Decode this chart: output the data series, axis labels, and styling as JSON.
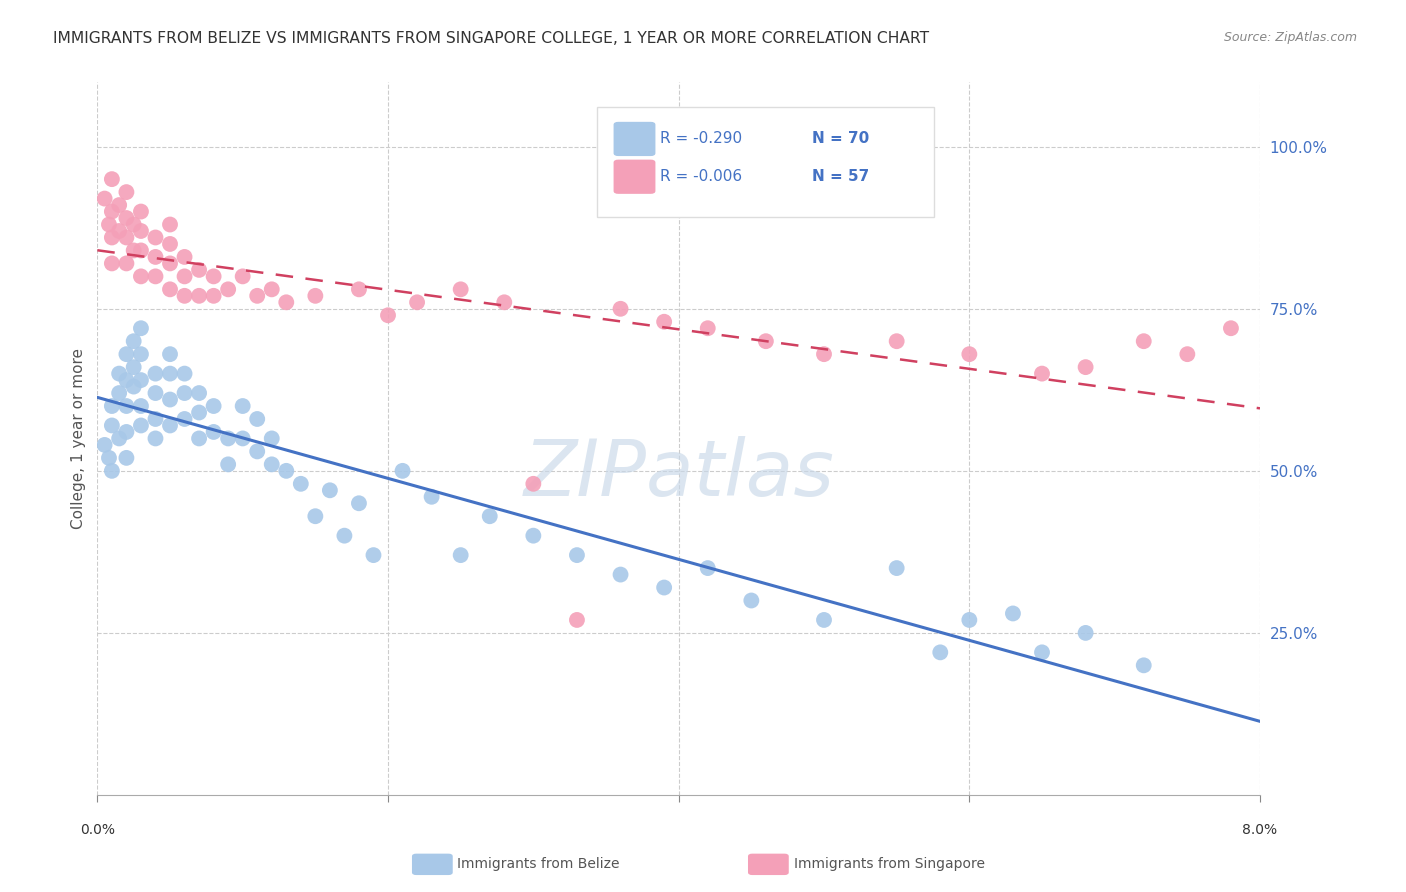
{
  "title": "IMMIGRANTS FROM BELIZE VS IMMIGRANTS FROM SINGAPORE COLLEGE, 1 YEAR OR MORE CORRELATION CHART",
  "source": "Source: ZipAtlas.com",
  "ylabel": "College, 1 year or more",
  "ytick_labels": [
    "25.0%",
    "50.0%",
    "75.0%",
    "100.0%"
  ],
  "ytick_values": [
    0.25,
    0.5,
    0.75,
    1.0
  ],
  "xlim": [
    0.0,
    0.08
  ],
  "ylim": [
    0.0,
    1.1
  ],
  "legend_r_belize": "-0.290",
  "legend_n_belize": "70",
  "legend_r_singapore": "-0.006",
  "legend_n_singapore": "57",
  "color_belize": "#a8c8e8",
  "color_singapore": "#f4a0b8",
  "color_belize_line": "#4472c4",
  "color_singapore_line": "#d04060",
  "belize_x": [
    0.0005,
    0.0008,
    0.001,
    0.001,
    0.001,
    0.0015,
    0.0015,
    0.0015,
    0.002,
    0.002,
    0.002,
    0.002,
    0.002,
    0.0025,
    0.0025,
    0.0025,
    0.003,
    0.003,
    0.003,
    0.003,
    0.003,
    0.004,
    0.004,
    0.004,
    0.004,
    0.005,
    0.005,
    0.005,
    0.005,
    0.006,
    0.006,
    0.006,
    0.007,
    0.007,
    0.007,
    0.008,
    0.008,
    0.009,
    0.009,
    0.01,
    0.01,
    0.011,
    0.011,
    0.012,
    0.012,
    0.013,
    0.014,
    0.015,
    0.016,
    0.017,
    0.018,
    0.019,
    0.021,
    0.023,
    0.025,
    0.027,
    0.03,
    0.033,
    0.036,
    0.039,
    0.042,
    0.045,
    0.05,
    0.055,
    0.058,
    0.06,
    0.063,
    0.065,
    0.068,
    0.072
  ],
  "belize_y": [
    0.54,
    0.52,
    0.6,
    0.57,
    0.5,
    0.65,
    0.62,
    0.55,
    0.68,
    0.64,
    0.6,
    0.56,
    0.52,
    0.7,
    0.66,
    0.63,
    0.72,
    0.68,
    0.64,
    0.6,
    0.57,
    0.65,
    0.62,
    0.58,
    0.55,
    0.68,
    0.65,
    0.61,
    0.57,
    0.65,
    0.62,
    0.58,
    0.62,
    0.59,
    0.55,
    0.6,
    0.56,
    0.55,
    0.51,
    0.6,
    0.55,
    0.58,
    0.53,
    0.55,
    0.51,
    0.5,
    0.48,
    0.43,
    0.47,
    0.4,
    0.45,
    0.37,
    0.5,
    0.46,
    0.37,
    0.43,
    0.4,
    0.37,
    0.34,
    0.32,
    0.35,
    0.3,
    0.27,
    0.35,
    0.22,
    0.27,
    0.28,
    0.22,
    0.25,
    0.2
  ],
  "singapore_x": [
    0.0005,
    0.0008,
    0.001,
    0.001,
    0.001,
    0.001,
    0.0015,
    0.0015,
    0.002,
    0.002,
    0.002,
    0.002,
    0.0025,
    0.0025,
    0.003,
    0.003,
    0.003,
    0.003,
    0.004,
    0.004,
    0.004,
    0.005,
    0.005,
    0.005,
    0.005,
    0.006,
    0.006,
    0.006,
    0.007,
    0.007,
    0.008,
    0.008,
    0.009,
    0.01,
    0.011,
    0.012,
    0.013,
    0.015,
    0.018,
    0.02,
    0.022,
    0.025,
    0.028,
    0.03,
    0.033,
    0.036,
    0.039,
    0.042,
    0.046,
    0.05,
    0.055,
    0.06,
    0.065,
    0.068,
    0.072,
    0.075,
    0.078
  ],
  "singapore_y": [
    0.92,
    0.88,
    0.95,
    0.9,
    0.86,
    0.82,
    0.91,
    0.87,
    0.93,
    0.89,
    0.86,
    0.82,
    0.88,
    0.84,
    0.9,
    0.87,
    0.84,
    0.8,
    0.86,
    0.83,
    0.8,
    0.88,
    0.85,
    0.82,
    0.78,
    0.83,
    0.8,
    0.77,
    0.81,
    0.77,
    0.8,
    0.77,
    0.78,
    0.8,
    0.77,
    0.78,
    0.76,
    0.77,
    0.78,
    0.74,
    0.76,
    0.78,
    0.76,
    0.48,
    0.27,
    0.75,
    0.73,
    0.72,
    0.7,
    0.68,
    0.7,
    0.68,
    0.65,
    0.66,
    0.7,
    0.68,
    0.72
  ]
}
